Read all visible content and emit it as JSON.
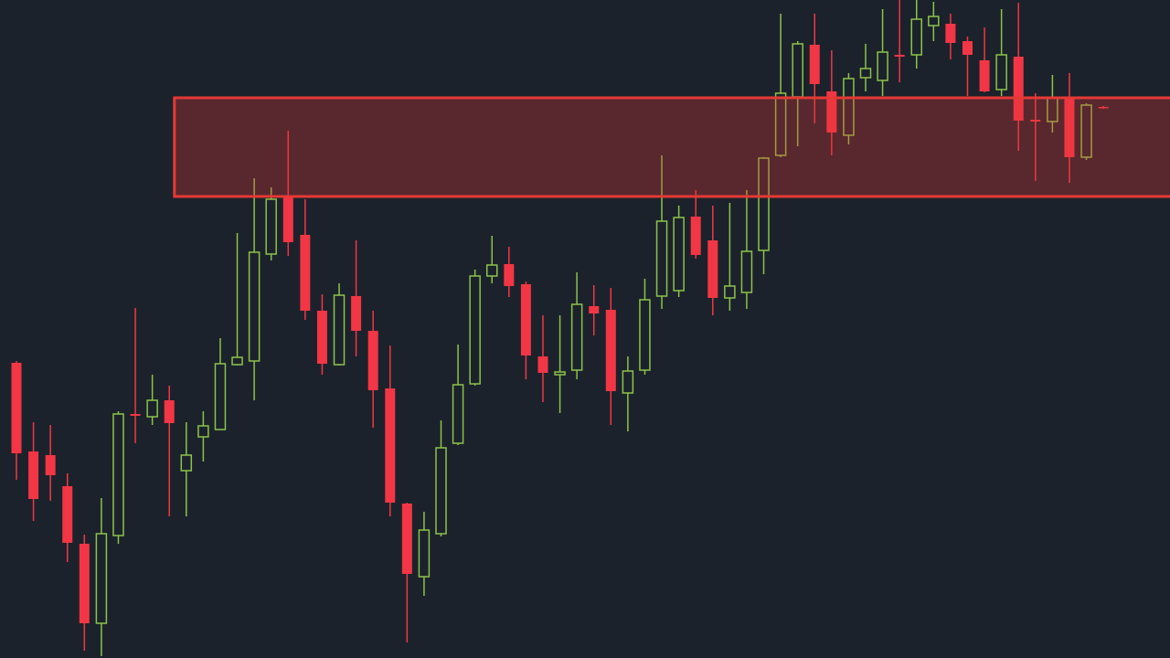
{
  "chart_data": {
    "type": "candlestick",
    "ylim": [
      0,
      720
    ],
    "up_color": "#8bc34a",
    "down_color": "#f23645",
    "open": [
      323,
      226,
      222,
      188,
      125,
      38,
      134,
      267,
      264,
      282,
      205,
      242,
      250,
      321,
      325,
      442,
      505,
      463,
      380,
      321,
      396,
      358,
      295,
      169,
      89,
      136,
      235,
      300,
      418,
      431,
      409,
      330,
      310,
      315,
      385,
      381,
      290,
      315,
      396,
      402,
      483,
      457,
      394,
      400,
      446,
      550,
      614,
      671,
      620,
      572,
      635,
      632,
      660,
      660,
      692,
      694,
      675,
      654,
      622,
      658,
      589,
      587,
      612,
      548,
      603
    ],
    "high": [
      325,
      258,
      255,
      202,
      135,
      175,
      270,
      383,
      310,
      298,
      258,
      270,
      350,
      465,
      525,
      515,
      577,
      502,
      398,
      410,
      457,
      380,
      342,
      170,
      160,
      260,
      343,
      425,
      462,
      450,
      412,
      375,
      375,
      422,
      408,
      405,
      330,
      415,
      550,
      495,
      512,
      495,
      498,
      512,
      548,
      705,
      675,
      705,
      665,
      640,
      672,
      710,
      720,
      720,
      718,
      705,
      680,
      690,
      710,
      717,
      618,
      638,
      640,
      607,
      604
    ],
    "low": [
      195,
      150,
      172,
      105,
      8,
      2,
      125,
      235,
      255,
      155,
      155,
      215,
      250,
      320,
      282,
      435,
      440,
      370,
      310,
      320,
      330,
      252,
      155,
      17,
      68,
      133,
      233,
      298,
      410,
      395,
      305,
      280,
      268,
      305,
      353,
      255,
      248,
      310,
      382,
      395,
      437,
      375,
      380,
      382,
      420,
      548,
      560,
      585,
      550,
      562,
      620,
      615,
      630,
      645,
      675,
      655,
      615,
      619,
      615,
      555,
      522,
      575,
      520,
      545,
      601
    ],
    "close": [
      224,
      174,
      200,
      126,
      38,
      136,
      267,
      265,
      282,
      257,
      222,
      254,
      322,
      329,
      444,
      502,
      455,
      380,
      322,
      397,
      358,
      293,
      170,
      92,
      140,
      230,
      299,
      418,
      430,
      407,
      331,
      312,
      313,
      387,
      377,
      292,
      314,
      392,
      478,
      482,
      441,
      394,
      407,
      445,
      547,
      618,
      672,
      628,
      575,
      634,
      645,
      663,
      658,
      699,
      702,
      673,
      660,
      620,
      660,
      588,
      587,
      613,
      548,
      605,
      602
    ],
    "zone": {
      "from": 9.3,
      "low": 505,
      "high": 613,
      "color": "#e53935"
    }
  }
}
